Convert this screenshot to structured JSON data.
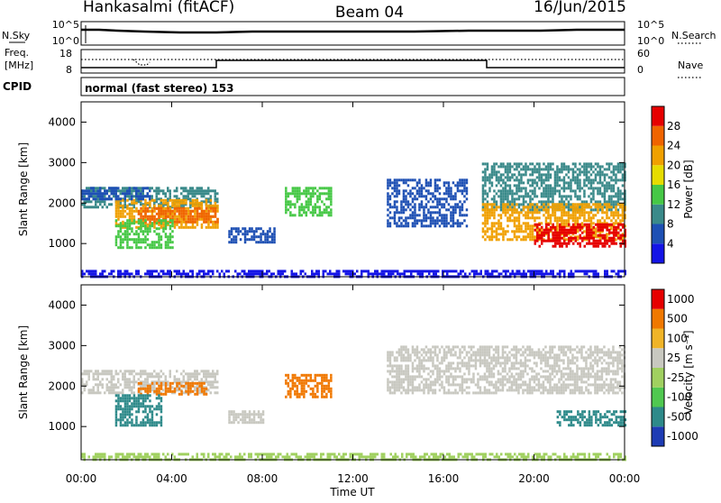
{
  "header": {
    "station": "Hankasalmi (fitACF)",
    "beam": "Beam 04",
    "date": "16/Jun/2015"
  },
  "strips": {
    "nsky_label": "N.Sky",
    "nsearch_label": "N.Search",
    "nsky_ticks": [
      "10^5",
      "10^0"
    ],
    "nsearch_ticks": [
      "10^5",
      "10^0"
    ],
    "freq_label_1": "Freq.",
    "freq_label_2": "[MHz]",
    "freq_ticks": [
      "18",
      "8"
    ],
    "nave_label": "Nave",
    "nave_ticks": [
      "60",
      "0"
    ],
    "cpid_label": "CPID",
    "cpid_value": "normal (fast stereo) 153"
  },
  "chart_data": [
    {
      "type": "heatmap",
      "panel": "power",
      "xlabel": "Time UT",
      "ylabel": "Slant Range [km]",
      "x_ticks": [
        "00:00",
        "04:00",
        "08:00",
        "12:00",
        "16:00",
        "20:00",
        "00:00"
      ],
      "x_range_hours": [
        0,
        24
      ],
      "y_ticks": [
        1000,
        2000,
        3000,
        4000
      ],
      "y_range_km": [
        180,
        4500
      ],
      "colorbar": {
        "label": "Power [dB]",
        "ticks": [
          4,
          8,
          12,
          16,
          20,
          24,
          28
        ],
        "colors": [
          "#1414e6",
          "#1e50b4",
          "#3a8a8a",
          "#46c846",
          "#e6dc00",
          "#f0a000",
          "#f06400",
          "#e60000"
        ]
      },
      "regions": [
        {
          "t0": 0.0,
          "t1": 6.0,
          "r0": 1900,
          "r1": 2400,
          "level": 2
        },
        {
          "t0": 1.5,
          "t1": 6.0,
          "r0": 1400,
          "r1": 2100,
          "level": 5
        },
        {
          "t0": 2.5,
          "t1": 6.0,
          "r0": 1550,
          "r1": 1900,
          "level": 6
        },
        {
          "t0": 1.5,
          "t1": 4.0,
          "r0": 900,
          "r1": 1600,
          "level": 3
        },
        {
          "t0": 0.0,
          "t1": 3.0,
          "r0": 2100,
          "r1": 2400,
          "level": 1
        },
        {
          "t0": 6.5,
          "t1": 8.5,
          "r0": 1000,
          "r1": 1400,
          "level": 1
        },
        {
          "t0": 9.0,
          "t1": 11.0,
          "r0": 1700,
          "r1": 2400,
          "level": 3
        },
        {
          "t0": 13.5,
          "t1": 17.0,
          "r0": 1400,
          "r1": 2600,
          "level": 1
        },
        {
          "t0": 17.7,
          "t1": 24.0,
          "r0": 1800,
          "r1": 3000,
          "level": 2
        },
        {
          "t0": 17.7,
          "t1": 24.0,
          "r0": 1100,
          "r1": 2000,
          "level": 5
        },
        {
          "t0": 20.0,
          "t1": 24.0,
          "r0": 900,
          "r1": 1500,
          "level": 7
        },
        {
          "t0": 0.0,
          "t1": 24.0,
          "r0": 200,
          "r1": 350,
          "level": 0
        }
      ]
    },
    {
      "type": "heatmap",
      "panel": "velocity",
      "xlabel": "Time UT",
      "ylabel": "Slant Range [km]",
      "x_ticks": [
        "00:00",
        "04:00",
        "08:00",
        "12:00",
        "16:00",
        "20:00",
        "00:00"
      ],
      "x_range_hours": [
        0,
        24
      ],
      "y_ticks": [
        1000,
        2000,
        3000,
        4000
      ],
      "y_range_km": [
        180,
        4500
      ],
      "colorbar": {
        "label": "Velocity [m s⁻¹]",
        "ticks": [
          1000,
          500,
          100,
          25,
          -25,
          -100,
          -500,
          -1000
        ],
        "colors": [
          "#1e3cb4",
          "#2e8a8a",
          "#50c850",
          "#a0d060",
          "#c8c8c0",
          "#f0b428",
          "#f07800",
          "#e60000"
        ]
      },
      "regions": [
        {
          "t0": 0.0,
          "t1": 6.0,
          "r0": 1800,
          "r1": 2400,
          "level": 4
        },
        {
          "t0": 2.5,
          "t1": 5.5,
          "r0": 1800,
          "r1": 2100,
          "level": 6
        },
        {
          "t0": 1.5,
          "t1": 3.5,
          "r0": 1000,
          "r1": 1800,
          "level": 1
        },
        {
          "t0": 6.5,
          "t1": 8.0,
          "r0": 1100,
          "r1": 1400,
          "level": 4
        },
        {
          "t0": 9.0,
          "t1": 11.0,
          "r0": 1700,
          "r1": 2300,
          "level": 6
        },
        {
          "t0": 13.5,
          "t1": 24.0,
          "r0": 1800,
          "r1": 3000,
          "level": 4
        },
        {
          "t0": 21.0,
          "t1": 24.0,
          "r0": 1000,
          "r1": 1400,
          "level": 1
        },
        {
          "t0": 0.0,
          "t1": 24.0,
          "r0": 200,
          "r1": 350,
          "level": 3
        }
      ]
    }
  ]
}
